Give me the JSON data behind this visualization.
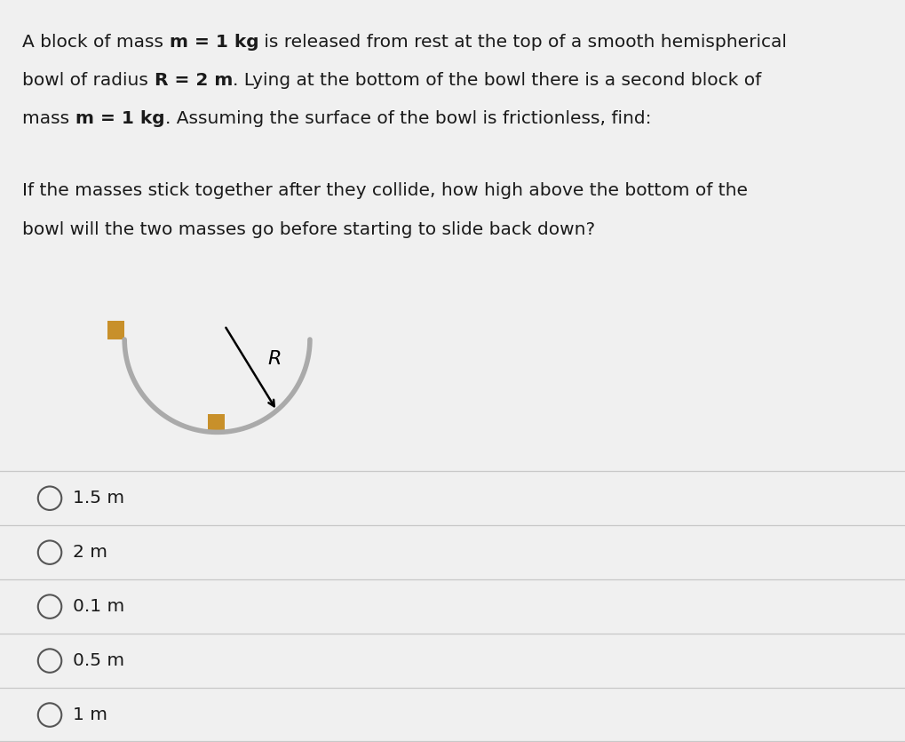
{
  "bg_color": "#f0f0f0",
  "text_color": "#1a1a1a",
  "options": [
    "1.5 m",
    "2 m",
    "0.1 m",
    "0.5 m",
    "1 m"
  ],
  "bowl_color": "#aaaaaa",
  "block_color": "#c8902a",
  "radius_label": "R",
  "figsize": [
    10.19,
    8.35
  ],
  "dpi": 100,
  "fontsize_main": 14.5,
  "fontsize_opt": 14.5
}
